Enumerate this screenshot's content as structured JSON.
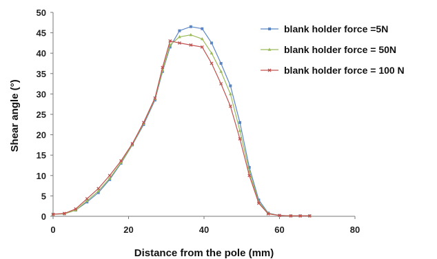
{
  "chart_data": {
    "type": "line",
    "title": "",
    "xlabel": "Distance from the pole (mm)",
    "ylabel": "Shear angle (°)",
    "xlim": [
      0,
      80
    ],
    "ylim": [
      0,
      50
    ],
    "xticks": [
      0,
      20,
      40,
      60,
      80
    ],
    "yticks": [
      0,
      5,
      10,
      15,
      20,
      25,
      30,
      35,
      40,
      45,
      50
    ],
    "grid": false,
    "legend_position": "top-right",
    "series": [
      {
        "name": "blank holder force =5N",
        "color": "#5b86c5",
        "marker": "square",
        "x": [
          0,
          3,
          6,
          9,
          12,
          15,
          18,
          21,
          24,
          27,
          29,
          31,
          33.5,
          36.5,
          39.5,
          42,
          44.5,
          47,
          49.5,
          52,
          54.5,
          57,
          60,
          63,
          65.5,
          68
        ],
        "y": [
          0.5,
          0.6,
          1.5,
          3.5,
          5.8,
          9.0,
          13.0,
          17.5,
          22.5,
          28.5,
          35.5,
          41.5,
          45.5,
          46.5,
          46.0,
          42.5,
          37.5,
          32.0,
          23.0,
          12.0,
          4.0,
          0.8,
          0.2,
          0.1,
          0.1,
          0.1
        ]
      },
      {
        "name": "blank holder force = 50N",
        "color": "#9bbb59",
        "marker": "triangle",
        "x": [
          0,
          3,
          6,
          9,
          12,
          15,
          18,
          21,
          24,
          27,
          29,
          31,
          33.5,
          36.5,
          39.5,
          42,
          44.5,
          47,
          49.5,
          52,
          54.5,
          57,
          60,
          63,
          65.5,
          68
        ],
        "y": [
          0.5,
          0.6,
          1.5,
          3.8,
          6.2,
          9.3,
          13.2,
          17.6,
          22.8,
          28.8,
          35.8,
          42.0,
          44.0,
          44.5,
          43.5,
          40.0,
          35.5,
          30.0,
          21.0,
          11.0,
          3.5,
          0.7,
          0.2,
          0.1,
          0.1,
          0.1
        ]
      },
      {
        "name": "blank holder force = 100 N",
        "color": "#c0504d",
        "marker": "x",
        "x": [
          0,
          3,
          6,
          9,
          12,
          15,
          18,
          21,
          24,
          27,
          29,
          31,
          33.5,
          36.5,
          39.5,
          42,
          44.5,
          47,
          49.5,
          52,
          54.5,
          57,
          60,
          63,
          65.5,
          68
        ],
        "y": [
          0.5,
          0.7,
          1.8,
          4.3,
          6.8,
          10.0,
          13.6,
          17.8,
          23.0,
          29.0,
          36.5,
          43.0,
          42.5,
          42.0,
          41.5,
          37.5,
          32.5,
          27.0,
          19.0,
          10.0,
          3.2,
          0.6,
          0.2,
          0.1,
          0.1,
          0.1
        ]
      }
    ]
  }
}
